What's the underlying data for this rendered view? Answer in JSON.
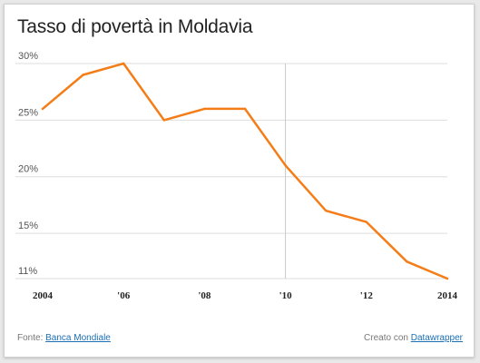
{
  "title": "Tasso di povertà in Moldavia",
  "footer": {
    "source_prefix": "Fonte:",
    "source_link": "Banca Mondiale",
    "credit_prefix": "Creato con",
    "credit_link": "Datawrapper"
  },
  "chart_data": {
    "type": "line",
    "title": "Tasso di povertà in Moldavia",
    "xlabel": "",
    "ylabel": "",
    "x": [
      2004,
      2005,
      2006,
      2007,
      2008,
      2009,
      2010,
      2011,
      2012,
      2013,
      2014
    ],
    "series": [
      {
        "values": [
          26,
          29,
          30,
          25,
          26,
          26,
          21,
          17,
          16,
          12.5,
          11
        ],
        "color": "#f47d18"
      }
    ],
    "xlim": [
      2004,
      2014
    ],
    "ylim": [
      11,
      30
    ],
    "x_ticks": [
      {
        "value": 2004,
        "label": "2004"
      },
      {
        "value": 2006,
        "label": "'06"
      },
      {
        "value": 2008,
        "label": "'08"
      },
      {
        "value": 2010,
        "label": "'10"
      },
      {
        "value": 2012,
        "label": "'12"
      },
      {
        "value": 2014,
        "label": "2014"
      }
    ],
    "y_ticks": [
      {
        "value": 30,
        "label": "30%"
      },
      {
        "value": 25,
        "label": "25%"
      },
      {
        "value": 20,
        "label": "20%"
      },
      {
        "value": 15,
        "label": "15%"
      },
      {
        "value": 11,
        "label": "11%"
      }
    ],
    "highlight_x": 2010,
    "grid": true,
    "colors": {
      "line": "#f47d18",
      "grid": "#dddddd",
      "highlight": "#c8c8c8"
    }
  }
}
